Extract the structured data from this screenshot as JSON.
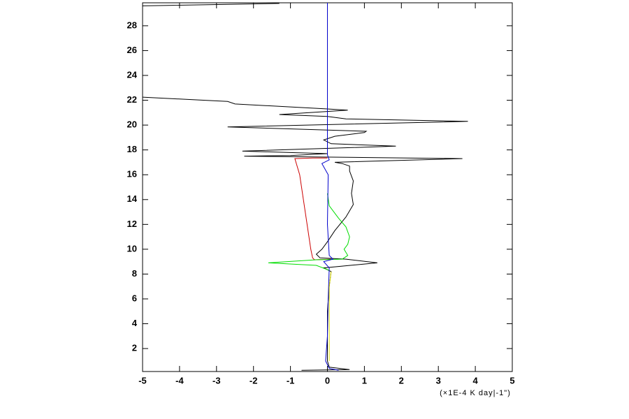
{
  "chart_data": {
    "type": "line",
    "xlabel": "(×1E-4 K day|-1\")",
    "xlim": [
      -5,
      5
    ],
    "ylim": [
      0.15,
      29.85
    ],
    "xticks": [
      -5,
      -4,
      -3,
      -2,
      -1,
      0,
      1,
      2,
      3,
      4,
      5
    ],
    "yticks": [
      2,
      4,
      6,
      8,
      10,
      12,
      14,
      16,
      18,
      20,
      22,
      24,
      26,
      28
    ],
    "series": [
      {
        "color": "#000000",
        "x": [
          -0.7,
          0.6,
          0.05,
          0,
          0,
          0.05,
          0.1,
          -0.1,
          1.35,
          0.5,
          -0.2,
          -0.3,
          -0.15,
          0,
          0.2,
          0.5,
          0.7,
          0.65,
          0.7,
          0.6,
          0.6,
          0.4,
          0.2,
          3.65,
          -2.25,
          -1,
          0,
          -2.3,
          1.85,
          0.1,
          -0.1,
          0.2,
          1.0,
          1.05,
          -2.7,
          3.8,
          0.5,
          0,
          -1.3,
          0.55,
          0,
          -2.5,
          -2.7,
          -5,
          null,
          -5,
          -1.3
        ],
        "y": [
          0.25,
          0.3,
          0.5,
          1,
          5,
          7,
          8.2,
          8.5,
          8.9,
          9.2,
          9.3,
          9.6,
          10,
          10.6,
          11.5,
          12.6,
          13.6,
          14.5,
          15.5,
          16.3,
          16.7,
          16.9,
          17.0,
          17.3,
          17.5,
          17.55,
          17.7,
          17.9,
          18.3,
          18.5,
          18.8,
          19.1,
          19.4,
          19.5,
          19.85,
          20.3,
          20.5,
          20.7,
          20.85,
          21.2,
          21.3,
          21.7,
          21.9,
          22.25,
          null,
          29.6,
          29.8
        ]
      },
      {
        "color": "#cc0000",
        "x": [
          0.1,
          -0.35,
          -0.4,
          -0.45,
          -0.55,
          -0.65,
          -0.75,
          -0.88,
          -0.4,
          0
        ],
        "y": [
          9.2,
          9.15,
          9.3,
          10,
          12,
          14,
          16,
          17.3,
          17.35,
          17.35
        ]
      },
      {
        "color": "#00dd00",
        "x": [
          0.05,
          -0.3,
          -1.6,
          -0.3,
          0.4,
          0.55,
          0.45,
          0.55,
          0.6,
          0.5,
          0.3,
          0.05,
          0
        ],
        "y": [
          8.3,
          8.7,
          8.9,
          9.15,
          9.2,
          9.5,
          10,
          10.4,
          11,
          11.8,
          12.5,
          13.5,
          14.5
        ]
      },
      {
        "color": "#0000cc",
        "x": [
          0.3,
          0.05,
          -0.05,
          0,
          0.02,
          0.05,
          -0.1,
          0.15,
          0.05,
          0,
          0.02,
          -0.15,
          0.05,
          0,
          0
        ],
        "y": [
          0.25,
          0.4,
          1,
          3,
          6,
          8.5,
          9,
          9.2,
          9.5,
          12,
          16,
          16.9,
          17.2,
          17.6,
          29.85
        ]
      },
      {
        "color": "#dddd00",
        "x": [
          0.05,
          0.05,
          0.1
        ],
        "y": [
          1,
          7,
          8.2
        ]
      }
    ]
  }
}
